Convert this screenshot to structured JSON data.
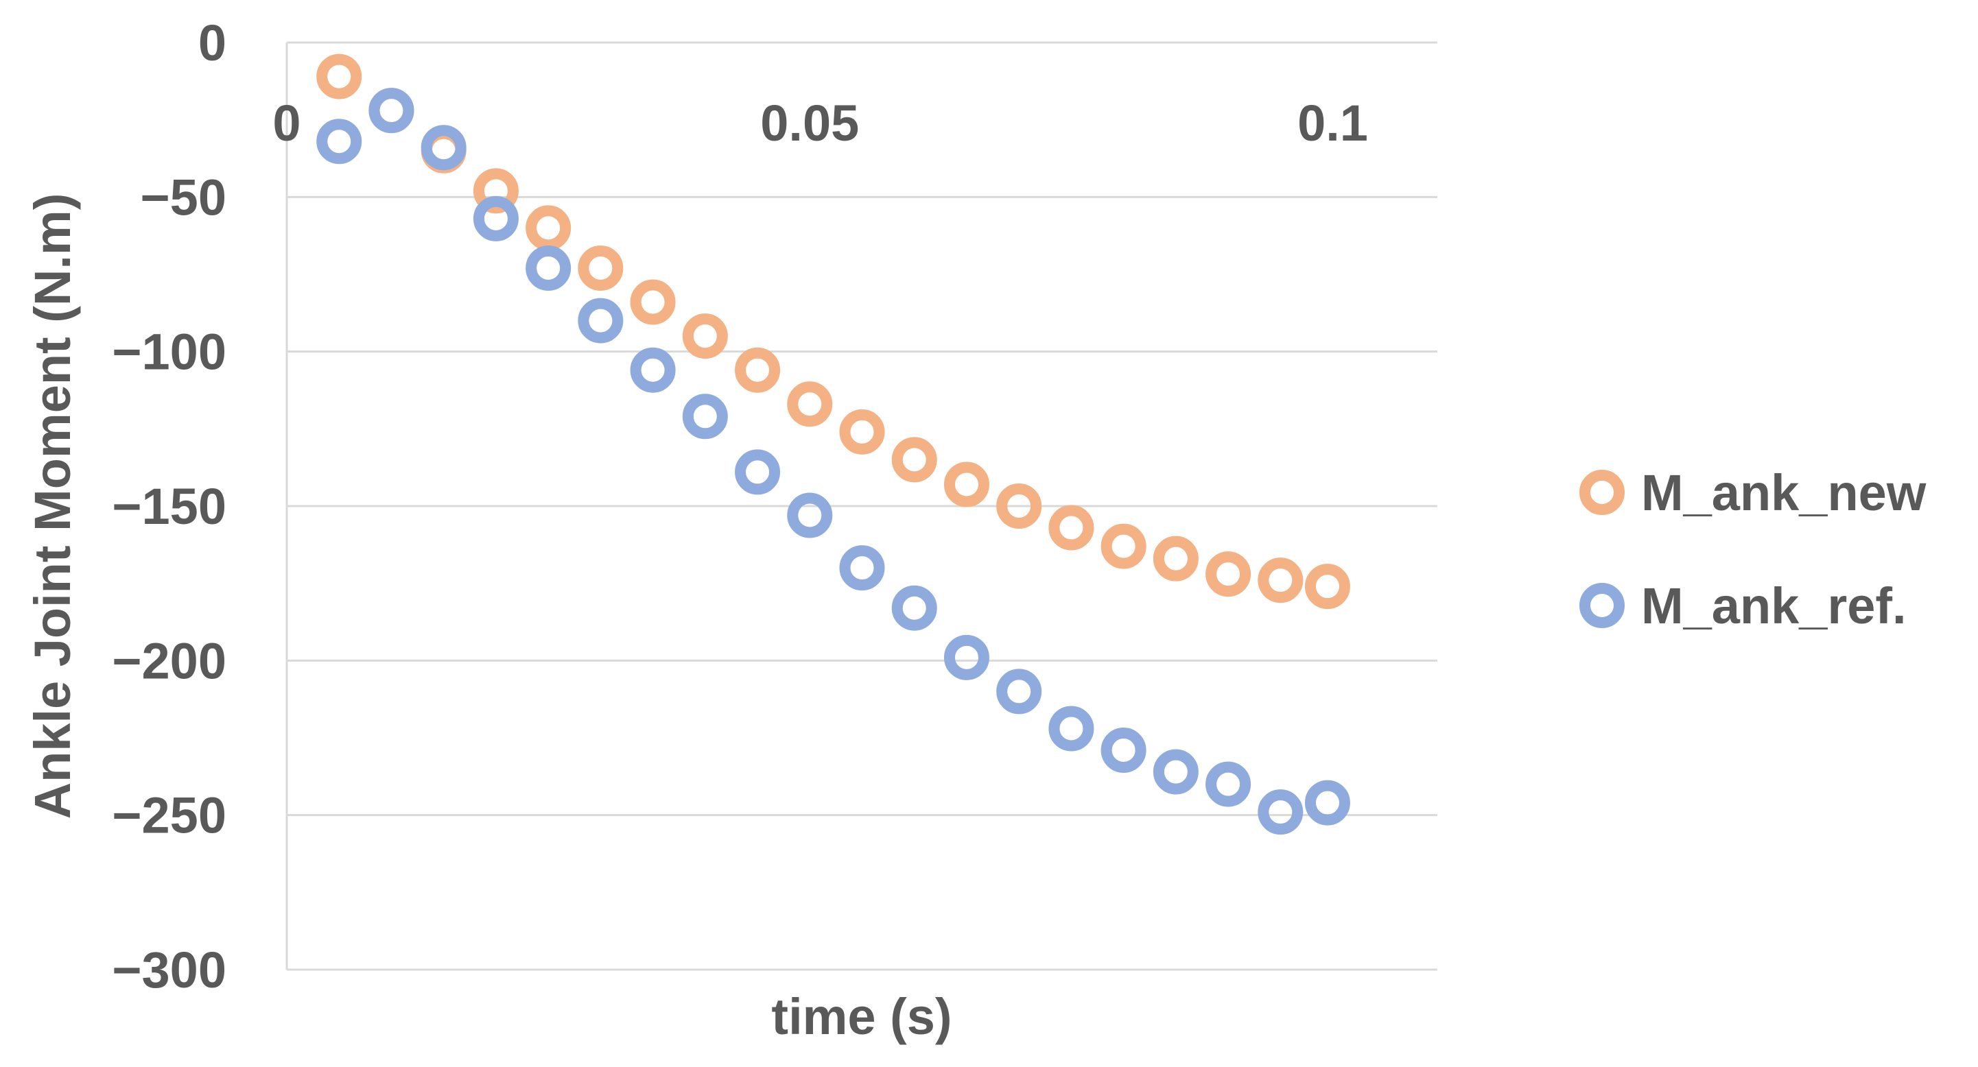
{
  "chart_data": {
    "type": "scatter",
    "xlabel": "time (s)",
    "ylabel": "Ankle Joint Moment (N.m)",
    "xlim": [
      0,
      0.11
    ],
    "ylim": [
      -300,
      0
    ],
    "x_ticks": [
      0,
      0.05,
      0.1
    ],
    "x_tick_labels": [
      "0",
      "0.05",
      "0.1"
    ],
    "y_ticks": [
      0,
      -50,
      -100,
      -150,
      -200,
      -250,
      -300
    ],
    "y_tick_labels": [
      "0",
      "−50",
      "−100",
      "−150",
      "−200",
      "−250",
      "−300"
    ],
    "grid": true,
    "legend_position": "right",
    "series": [
      {
        "name": "M_ank_new",
        "color": "#f4b183",
        "marker": "hollow-circle",
        "points": [
          [
            0.005,
            -11
          ],
          [
            0.01,
            -22
          ],
          [
            0.015,
            -35
          ],
          [
            0.02,
            -48
          ],
          [
            0.025,
            -60
          ],
          [
            0.03,
            -73
          ],
          [
            0.035,
            -84
          ],
          [
            0.04,
            -95
          ],
          [
            0.045,
            -106
          ],
          [
            0.05,
            -117
          ],
          [
            0.055,
            -126
          ],
          [
            0.06,
            -135
          ],
          [
            0.065,
            -143
          ],
          [
            0.07,
            -150
          ],
          [
            0.075,
            -157
          ],
          [
            0.08,
            -163
          ],
          [
            0.085,
            -167
          ],
          [
            0.09,
            -172
          ],
          [
            0.095,
            -174
          ],
          [
            0.0995,
            -176
          ]
        ]
      },
      {
        "name": "M_ank_ref.",
        "color": "#8faadc",
        "marker": "hollow-circle",
        "points": [
          [
            0.005,
            -32
          ],
          [
            0.01,
            -22
          ],
          [
            0.015,
            -34
          ],
          [
            0.02,
            -57
          ],
          [
            0.025,
            -73
          ],
          [
            0.03,
            -90
          ],
          [
            0.035,
            -106
          ],
          [
            0.04,
            -121
          ],
          [
            0.045,
            -139
          ],
          [
            0.05,
            -153
          ],
          [
            0.055,
            -170
          ],
          [
            0.06,
            -183
          ],
          [
            0.065,
            -199
          ],
          [
            0.07,
            -210
          ],
          [
            0.075,
            -222
          ],
          [
            0.08,
            -229
          ],
          [
            0.085,
            -236
          ],
          [
            0.09,
            -240
          ],
          [
            0.095,
            -249
          ],
          [
            0.0995,
            -246
          ]
        ]
      }
    ]
  }
}
